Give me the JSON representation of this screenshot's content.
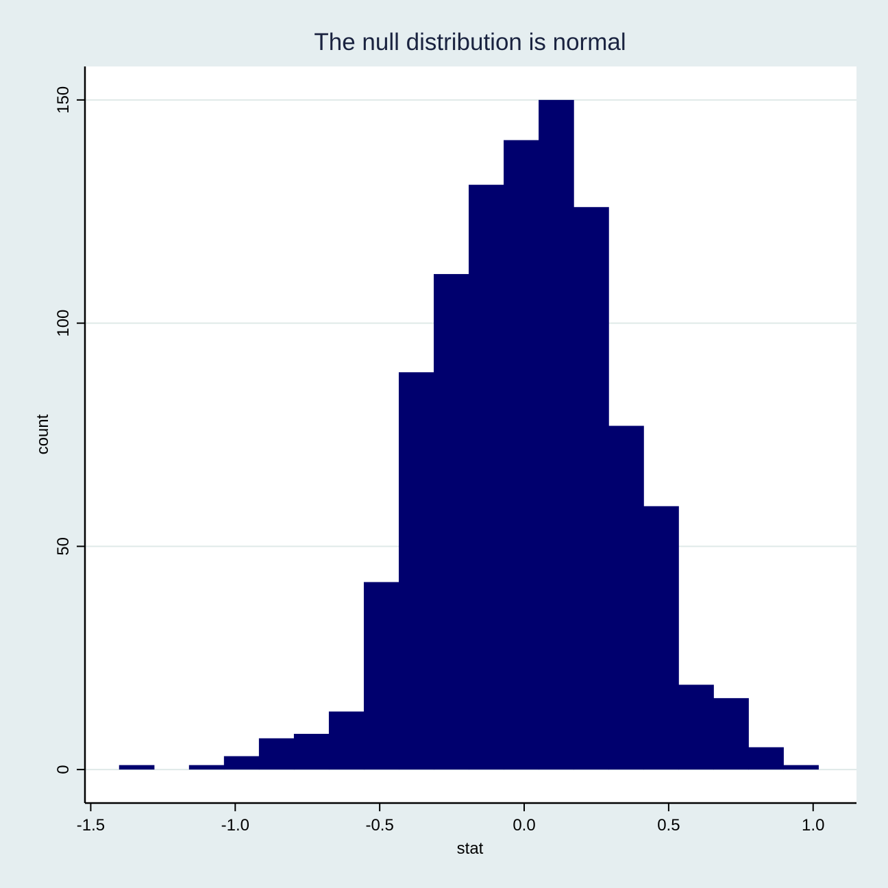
{
  "chart_data": {
    "type": "bar",
    "title": "The null distribution is normal",
    "xlabel": "stat",
    "ylabel": "count",
    "xlim": [
      -1.52,
      1.15
    ],
    "ylim": [
      -7.5,
      157.5
    ],
    "xticks": [
      {
        "value": -1.5,
        "label": "-1.5"
      },
      {
        "value": -1.0,
        "label": "-1.0"
      },
      {
        "value": -0.5,
        "label": "-0.5"
      },
      {
        "value": 0.0,
        "label": "0.0"
      },
      {
        "value": 0.5,
        "label": "0.5"
      },
      {
        "value": 1.0,
        "label": "1.0"
      }
    ],
    "yticks": [
      {
        "value": 0,
        "label": "0"
      },
      {
        "value": 50,
        "label": "50"
      },
      {
        "value": 100,
        "label": "100"
      },
      {
        "value": 150,
        "label": "150"
      }
    ],
    "bin_width": 0.121,
    "bins": [
      {
        "x0": -1.402,
        "x1": -1.281,
        "count": 1
      },
      {
        "x0": -1.281,
        "x1": -1.16,
        "count": 0
      },
      {
        "x0": -1.16,
        "x1": -1.039,
        "count": 1
      },
      {
        "x0": -1.039,
        "x1": -0.918,
        "count": 3
      },
      {
        "x0": -0.918,
        "x1": -0.797,
        "count": 7
      },
      {
        "x0": -0.797,
        "x1": -0.676,
        "count": 8
      },
      {
        "x0": -0.676,
        "x1": -0.555,
        "count": 13
      },
      {
        "x0": -0.555,
        "x1": -0.434,
        "count": 42
      },
      {
        "x0": -0.434,
        "x1": -0.313,
        "count": 89
      },
      {
        "x0": -0.313,
        "x1": -0.192,
        "count": 111
      },
      {
        "x0": -0.192,
        "x1": -0.071,
        "count": 131
      },
      {
        "x0": -0.071,
        "x1": 0.05,
        "count": 141
      },
      {
        "x0": 0.05,
        "x1": 0.171,
        "count": 150
      },
      {
        "x0": 0.171,
        "x1": 0.292,
        "count": 126
      },
      {
        "x0": 0.292,
        "x1": 0.413,
        "count": 77
      },
      {
        "x0": 0.413,
        "x1": 0.534,
        "count": 59
      },
      {
        "x0": 0.534,
        "x1": 0.655,
        "count": 19
      },
      {
        "x0": 0.655,
        "x1": 0.776,
        "count": 16
      },
      {
        "x0": 0.776,
        "x1": 0.897,
        "count": 5
      },
      {
        "x0": 0.897,
        "x1": 1.018,
        "count": 1
      }
    ],
    "bar_color": "#00006e",
    "plot_background": "#ffffff",
    "page_background": "#e5eef0",
    "gridline_color": "#dfe9e8",
    "grid": true,
    "legend": "none"
  }
}
